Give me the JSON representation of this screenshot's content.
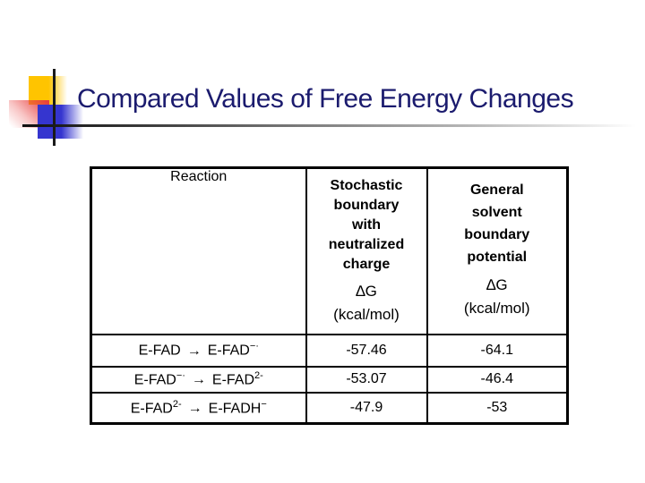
{
  "slide": {
    "title": "Compared Values of Free Energy Changes",
    "arrow": "→"
  },
  "table": {
    "header": {
      "reaction": "Reaction",
      "col2_title": "Stochastic boundary with neutralized charge",
      "col2_dg": "∆G",
      "col2_unit": "(kcal/mol)",
      "col3_title": "General solvent boundary potential",
      "col3_dg": "∆G",
      "col3_unit": "(kcal/mol)"
    },
    "rows": [
      {
        "reactant": "E-FAD",
        "reactant_sup": "",
        "product": "E-FAD",
        "product_sup": "−·",
        "stochastic": "-57.46",
        "general": "-64.1"
      },
      {
        "reactant": "E-FAD",
        "reactant_sup": "−·",
        "product": "E-FAD",
        "product_sup": "2-",
        "stochastic": "-53.07",
        "general": "-46.4"
      },
      {
        "reactant": "E-FAD",
        "reactant_sup": "2-",
        "product": "E-FADH",
        "product_sup": "−",
        "stochastic": "-47.9",
        "general": "-53"
      }
    ]
  },
  "theme": {
    "title_color": "#1b1b6e",
    "decor_yellow": "#ffc400",
    "decor_blue": "#3535cf",
    "decor_red": "#e84040",
    "line_color": "#1a1a1a",
    "table_border": "#000000",
    "background": "#ffffff"
  }
}
